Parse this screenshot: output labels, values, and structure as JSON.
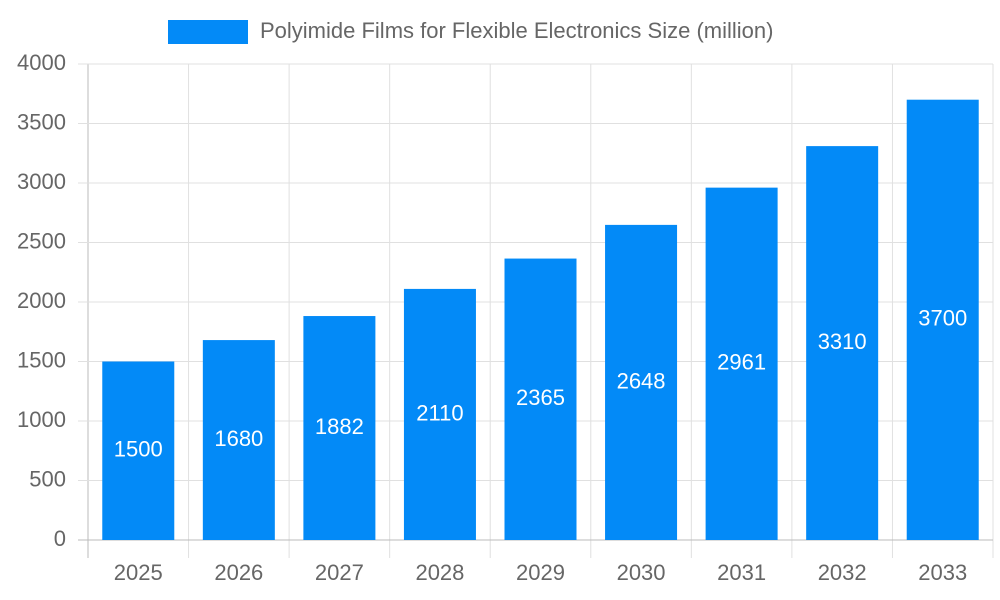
{
  "chart_data": {
    "type": "bar",
    "legend_label": "Polyimide Films for Flexible Electronics Size (million)",
    "categories": [
      "2025",
      "2026",
      "2027",
      "2028",
      "2029",
      "2030",
      "2031",
      "2032",
      "2033"
    ],
    "values": [
      1500,
      1680,
      1882,
      2110,
      2365,
      2648,
      2961,
      3310,
      3700
    ],
    "color": "#038af7",
    "ylim": [
      0,
      4000
    ],
    "yticks": [
      0,
      500,
      1000,
      1500,
      2000,
      2500,
      3000,
      3500,
      4000
    ],
    "grid": true,
    "legend": "top"
  }
}
